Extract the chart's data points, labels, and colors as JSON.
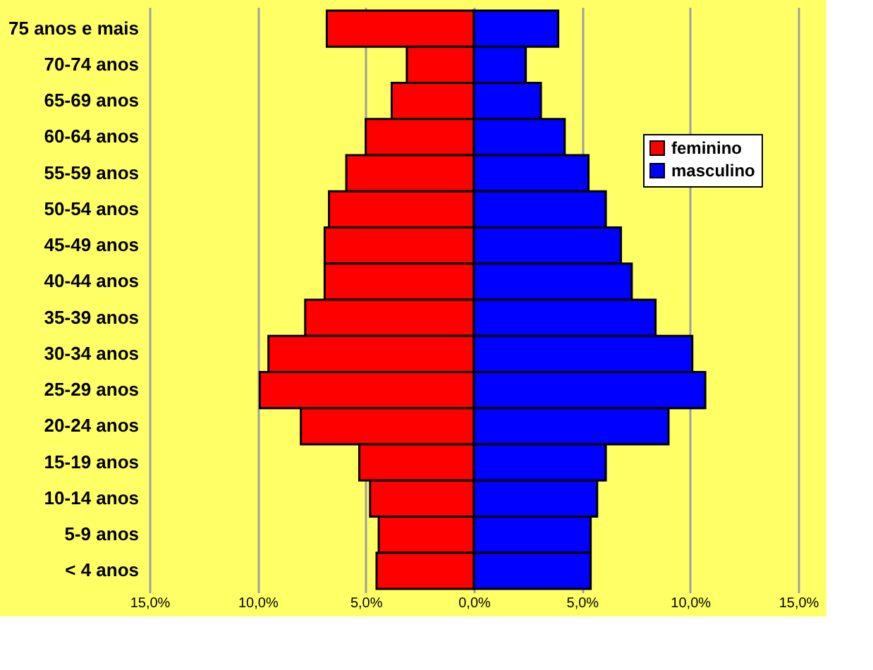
{
  "chart_data": {
    "type": "bar",
    "orientation": "horizontal",
    "stacked": true,
    "categories": [
      "75 anos e mais",
      "70-74 anos",
      "65-69 anos",
      "60-64 anos",
      "55-59 anos",
      "50-54 anos",
      "45-49 anos",
      "40-44 anos",
      "35-39 anos",
      "30-34 anos",
      "25-29 anos",
      "20-24 anos",
      "15-19 anos",
      "10-14 anos",
      "5-9 anos",
      "< 4 anos"
    ],
    "series": [
      {
        "name": "feminino",
        "color": "#ff0000",
        "values": [
          -6.8,
          -3.1,
          -3.8,
          -5.0,
          -5.9,
          -6.7,
          -6.9,
          -6.9,
          -7.8,
          -9.5,
          -9.9,
          -8.0,
          -5.3,
          -4.8,
          -4.4,
          -4.5
        ]
      },
      {
        "name": "masculino",
        "color": "#0000ff",
        "values": [
          3.9,
          2.4,
          3.1,
          4.2,
          5.3,
          6.1,
          6.8,
          7.3,
          8.4,
          10.1,
          10.7,
          9.0,
          6.1,
          5.7,
          5.4,
          5.4
        ]
      }
    ],
    "xlim": [
      -15,
      15
    ],
    "xticks": [
      {
        "value": -15,
        "label": "15,0%"
      },
      {
        "value": -10,
        "label": "10,0%"
      },
      {
        "value": -5,
        "label": "5,0%"
      },
      {
        "value": 0,
        "label": "0,0%"
      },
      {
        "value": 5,
        "label": "5,0%"
      },
      {
        "value": 10,
        "label": "10,0%"
      },
      {
        "value": 15,
        "label": "15,0%"
      }
    ],
    "grid": "x",
    "legend": "top right"
  }
}
